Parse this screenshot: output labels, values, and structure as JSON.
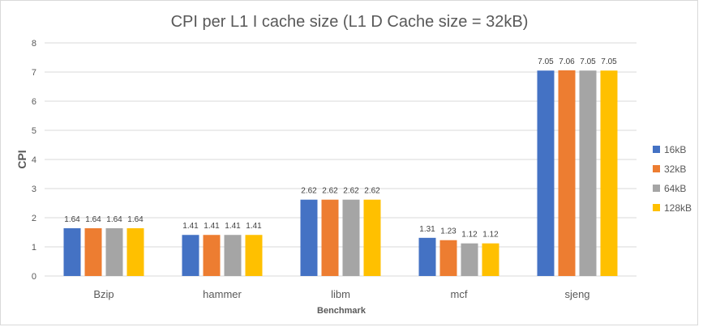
{
  "chart_data": {
    "type": "bar",
    "title": "CPI per L1 I cache size (L1 D Cache size = 32kB)",
    "xlabel": "Benchmark",
    "ylabel": "CPI",
    "ylim": [
      0,
      8
    ],
    "yticks": [
      "0",
      "1",
      "2",
      "3",
      "4",
      "5",
      "6",
      "7",
      "8"
    ],
    "grid": true,
    "legend_position": "right",
    "categories": [
      "Bzip",
      "hammer",
      "libm",
      "mcf",
      "sjeng"
    ],
    "series": [
      {
        "name": "16kB",
        "color": "#4472C4",
        "values": [
          1.64,
          1.41,
          2.62,
          1.31,
          7.05
        ],
        "labels": [
          "1.64",
          "1.41",
          "2.62",
          "1.31",
          "7.05"
        ]
      },
      {
        "name": "32kB",
        "color": "#ED7D31",
        "values": [
          1.64,
          1.41,
          2.62,
          1.23,
          7.06
        ],
        "labels": [
          "1.64",
          "1.41",
          "2.62",
          "1.23",
          "7.06"
        ]
      },
      {
        "name": "64kB",
        "color": "#A5A5A5",
        "values": [
          1.64,
          1.41,
          2.62,
          1.12,
          7.05
        ],
        "labels": [
          "1.64",
          "1.41",
          "2.62",
          "1.12",
          "7.05"
        ]
      },
      {
        "name": "128kB",
        "color": "#FFC000",
        "values": [
          1.64,
          1.41,
          2.62,
          1.12,
          7.05
        ],
        "labels": [
          "1.64",
          "1.41",
          "2.62",
          "1.12",
          "7.05"
        ]
      }
    ]
  }
}
